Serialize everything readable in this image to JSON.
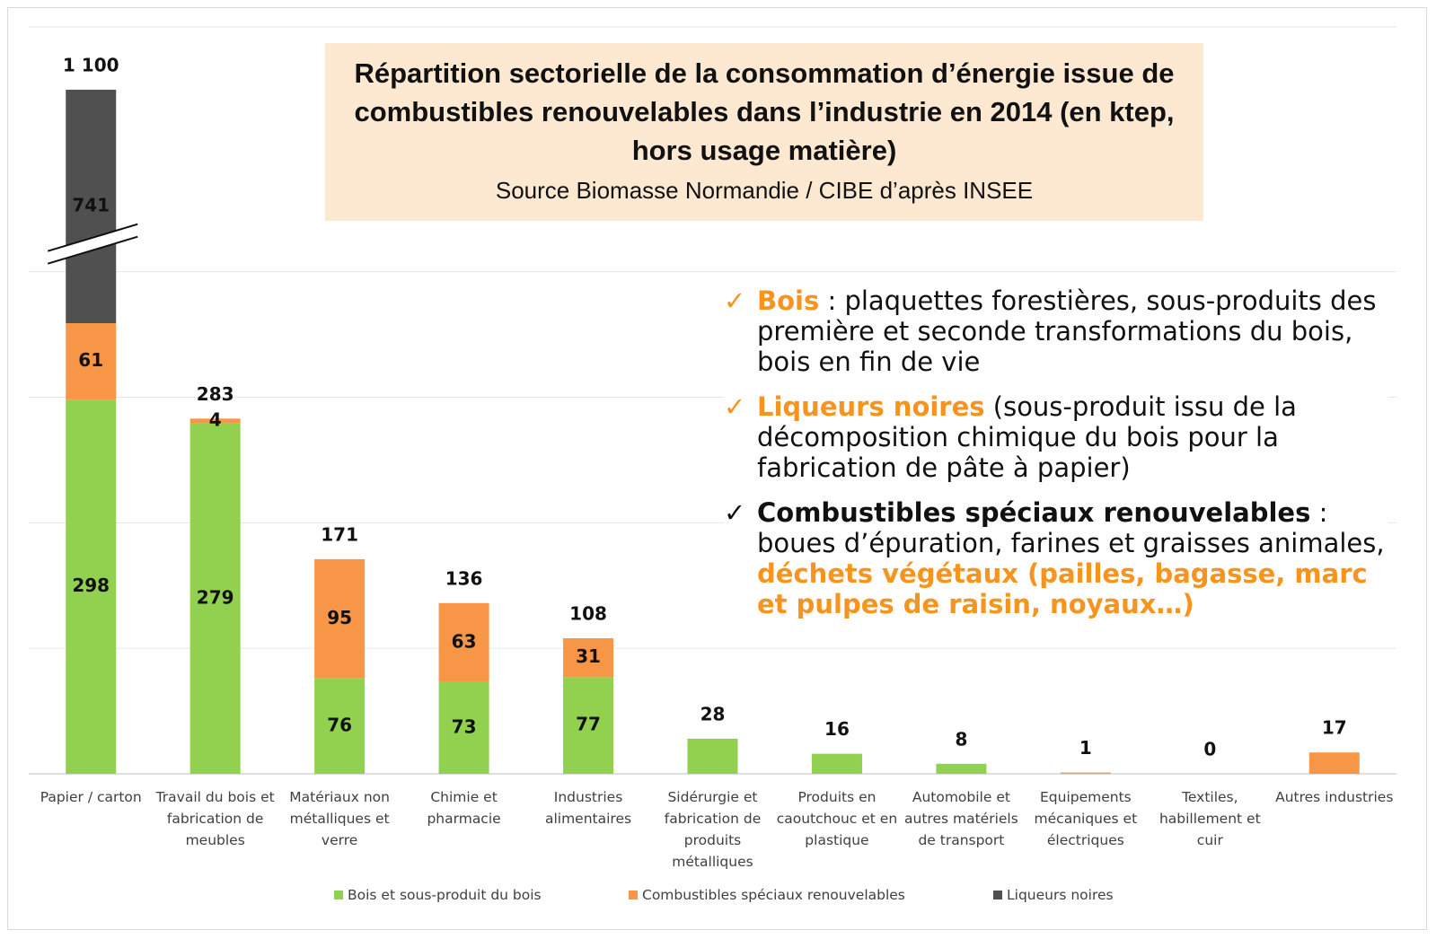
{
  "chart_data": {
    "type": "stacked_bar",
    "title": "Répartition sectorielle de la consommation d’énergie issue de combustibles renouvelables dans l’industrie en 2014 (en ktep, hors usage matière)",
    "subtitle": "Source Biomasse Normandie / CIBE d’après INSEE",
    "categories": [
      "Papier / carton",
      "Travail du bois et fabrication de meubles",
      "Matériaux non métalliques et verre",
      "Chimie et pharmacie",
      "Industries alimentaires",
      "Sidérurgie et fabrication de produits métalliques",
      "Produits en caoutchouc et en plastique",
      "Automobile et autres matériels de transport",
      "Equipements mécaniques et électriques",
      "Textiles, habillement et cuir",
      "Autres industries"
    ],
    "series": [
      {
        "name": "Bois et sous-produit du bois",
        "color": "#92d050",
        "values": [
          298,
          279,
          76,
          73,
          77,
          28,
          16,
          8,
          0,
          0,
          0
        ]
      },
      {
        "name": "Combustibles spéciaux renouvelables",
        "color": "#f79646",
        "values": [
          61,
          4,
          95,
          63,
          31,
          0,
          0,
          0,
          1,
          0,
          17
        ]
      },
      {
        "name": "Liqueurs noires",
        "color": "#505050",
        "values": [
          741,
          0,
          0,
          0,
          0,
          0,
          0,
          0,
          0,
          0,
          0
        ]
      }
    ],
    "totals": [
      1100,
      283,
      171,
      136,
      108,
      28,
      16,
      8,
      1,
      0,
      17
    ],
    "total_labels": [
      "1 100",
      "283",
      "171",
      "136",
      "108",
      "28",
      "16",
      "8",
      "1",
      "0",
      "17"
    ],
    "ylim": [
      0,
      1150
    ],
    "ybreak": [
      425,
      980
    ],
    "yticks": [
      0,
      100,
      200,
      300,
      400
    ],
    "grid": true,
    "legend": "bottom",
    "notes": [
      {
        "check": "✓",
        "head": "Bois",
        "text": " : plaquettes forestières, sous-produits des première et seconde transformations du bois, bois en fin de vie"
      },
      {
        "check": "✓",
        "head": "Liqueurs noires",
        "text": " (sous-produit issu de la décomposition chimique du bois pour la fabrication de pâte à papier)"
      },
      {
        "check": "✓",
        "head": "Combustibles spéciaux renouvelables",
        "text": " : boues d’épuration, farines et graisses animales, ",
        "highlight": "déchets végétaux (pailles, bagasse, marc et pulpes de raisin, noyaux…)"
      }
    ]
  }
}
